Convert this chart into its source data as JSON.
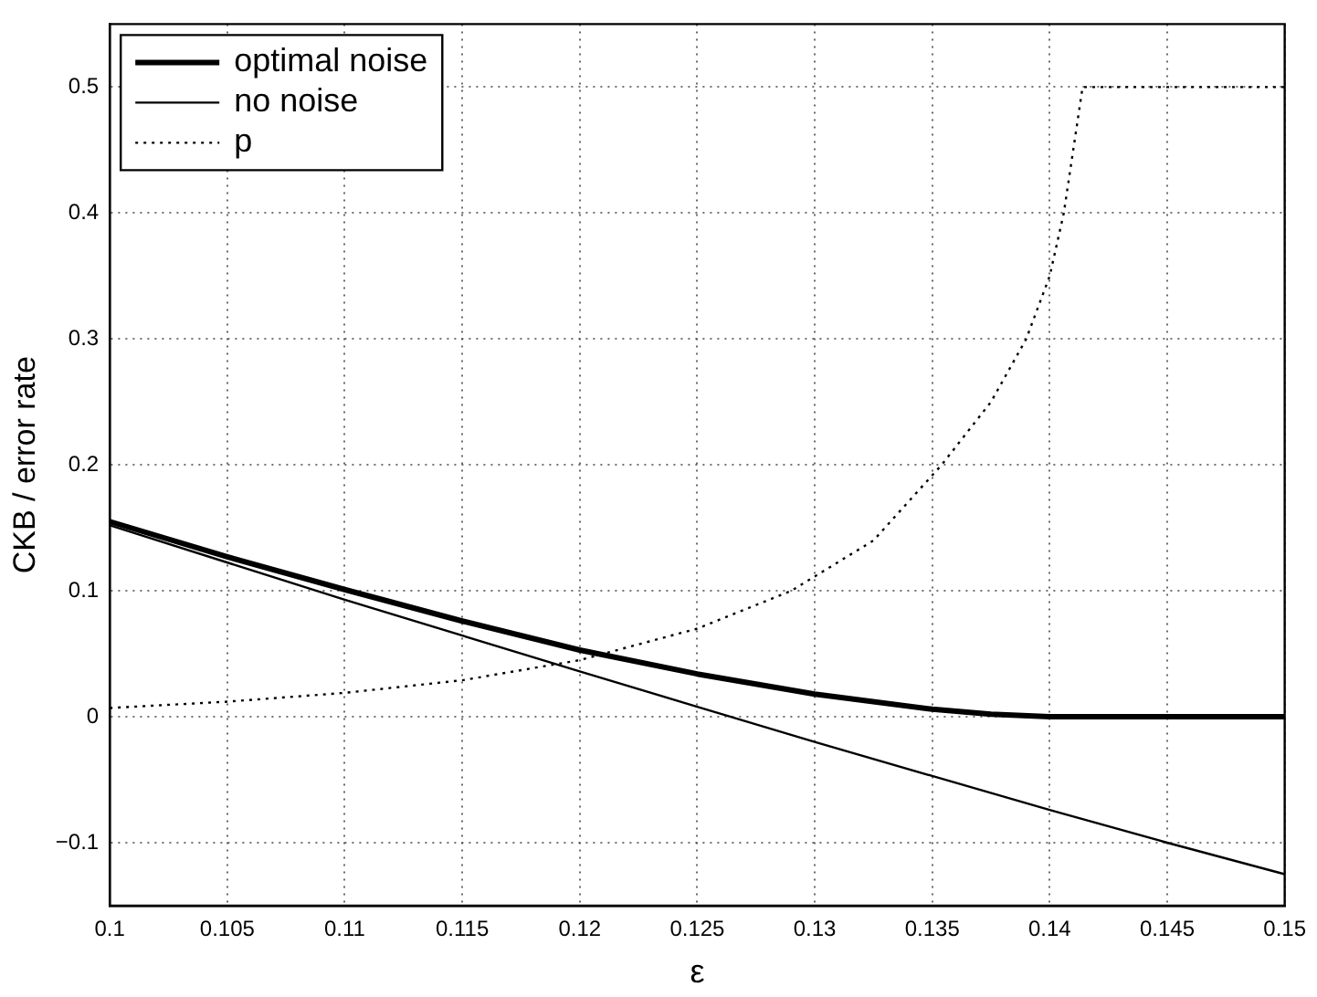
{
  "chart_data": {
    "type": "line",
    "xlabel": "ε",
    "ylabel": "CKB / error rate",
    "xlim": [
      0.1,
      0.15
    ],
    "xticks": [
      0.1,
      0.105,
      0.11,
      0.115,
      0.12,
      0.125,
      0.13,
      0.135,
      0.14,
      0.145,
      0.15
    ],
    "ylim": [
      -0.15,
      0.55
    ],
    "yticks": [
      -0.1,
      0,
      0.1,
      0.2,
      0.3,
      0.4,
      0.5
    ],
    "grid": true,
    "legend": "top left",
    "marker": "none",
    "series": [
      {
        "name": "optimal noise",
        "color": "#000000",
        "line_style": "solid",
        "x": [
          0.1,
          0.105,
          0.11,
          0.115,
          0.12,
          0.125,
          0.13,
          0.135,
          0.1375,
          0.14,
          0.145,
          0.15
        ],
        "values": [
          0.155,
          0.127,
          0.101,
          0.076,
          0.053,
          0.034,
          0.018,
          0.006,
          0.002,
          0.0,
          0.0,
          0.0
        ]
      },
      {
        "name": "no noise",
        "color": "#000000",
        "line_style": "solid",
        "x": [
          0.1,
          0.11,
          0.12,
          0.125,
          0.13,
          0.135,
          0.14,
          0.145,
          0.15
        ],
        "values": [
          0.152,
          0.093,
          0.036,
          0.008,
          -0.02,
          -0.047,
          -0.074,
          -0.1,
          -0.125
        ]
      },
      {
        "name": "p",
        "color": "#000000",
        "line_style": "dotted",
        "x": [
          0.1,
          0.105,
          0.11,
          0.115,
          0.12,
          0.125,
          0.129,
          0.1325,
          0.1354,
          0.1375,
          0.139,
          0.14,
          0.1406,
          0.141,
          0.1414,
          0.145,
          0.15
        ],
        "values": [
          0.007,
          0.012,
          0.019,
          0.029,
          0.045,
          0.07,
          0.1,
          0.14,
          0.2,
          0.25,
          0.3,
          0.35,
          0.4,
          0.45,
          0.5,
          0.5,
          0.5
        ]
      }
    ]
  }
}
